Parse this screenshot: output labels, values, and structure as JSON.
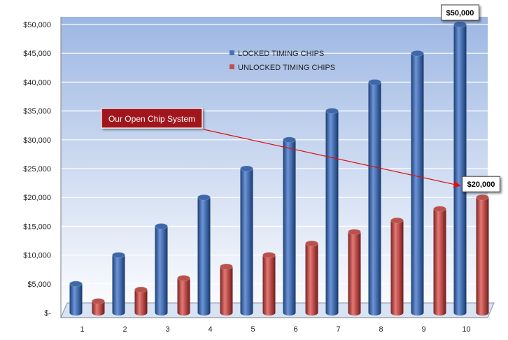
{
  "chart_data": {
    "type": "bar",
    "categories": [
      "1",
      "2",
      "3",
      "4",
      "5",
      "6",
      "7",
      "8",
      "9",
      "10"
    ],
    "series": [
      {
        "name": "LOCKED TIMING CHIPS",
        "color": "#4a73b4",
        "values": [
          5000,
          10000,
          15000,
          20000,
          25000,
          30000,
          35000,
          40000,
          45000,
          50000
        ]
      },
      {
        "name": "UNLOCKED TIMING CHIPS",
        "color": "#c0504d",
        "values": [
          2000,
          4000,
          6000,
          8000,
          10000,
          12000,
          14000,
          16000,
          18000,
          20000
        ]
      }
    ],
    "ylim": [
      0,
      50000
    ],
    "yticks": [
      {
        "value": 0,
        "label": "$-"
      },
      {
        "value": 5000,
        "label": "$5,000"
      },
      {
        "value": 10000,
        "label": "$10,000"
      },
      {
        "value": 15000,
        "label": "$15,000"
      },
      {
        "value": 20000,
        "label": "$20,000"
      },
      {
        "value": 25000,
        "label": "$25,000"
      },
      {
        "value": 30000,
        "label": "$30,000"
      },
      {
        "value": 35000,
        "label": "$35,000"
      },
      {
        "value": 40000,
        "label": "$40,000"
      },
      {
        "value": 45000,
        "label": "$45,000"
      },
      {
        "value": 50000,
        "label": "$50,000"
      }
    ],
    "grid": true,
    "legend_position": "top-center",
    "data_labels": [
      {
        "series": 0,
        "index": 9,
        "text": "$50,000"
      },
      {
        "series": 1,
        "index": 9,
        "text": "$20,000"
      }
    ],
    "annotation": {
      "text": "Our Open Chip System",
      "target_series": 1,
      "target_index": 9
    }
  }
}
